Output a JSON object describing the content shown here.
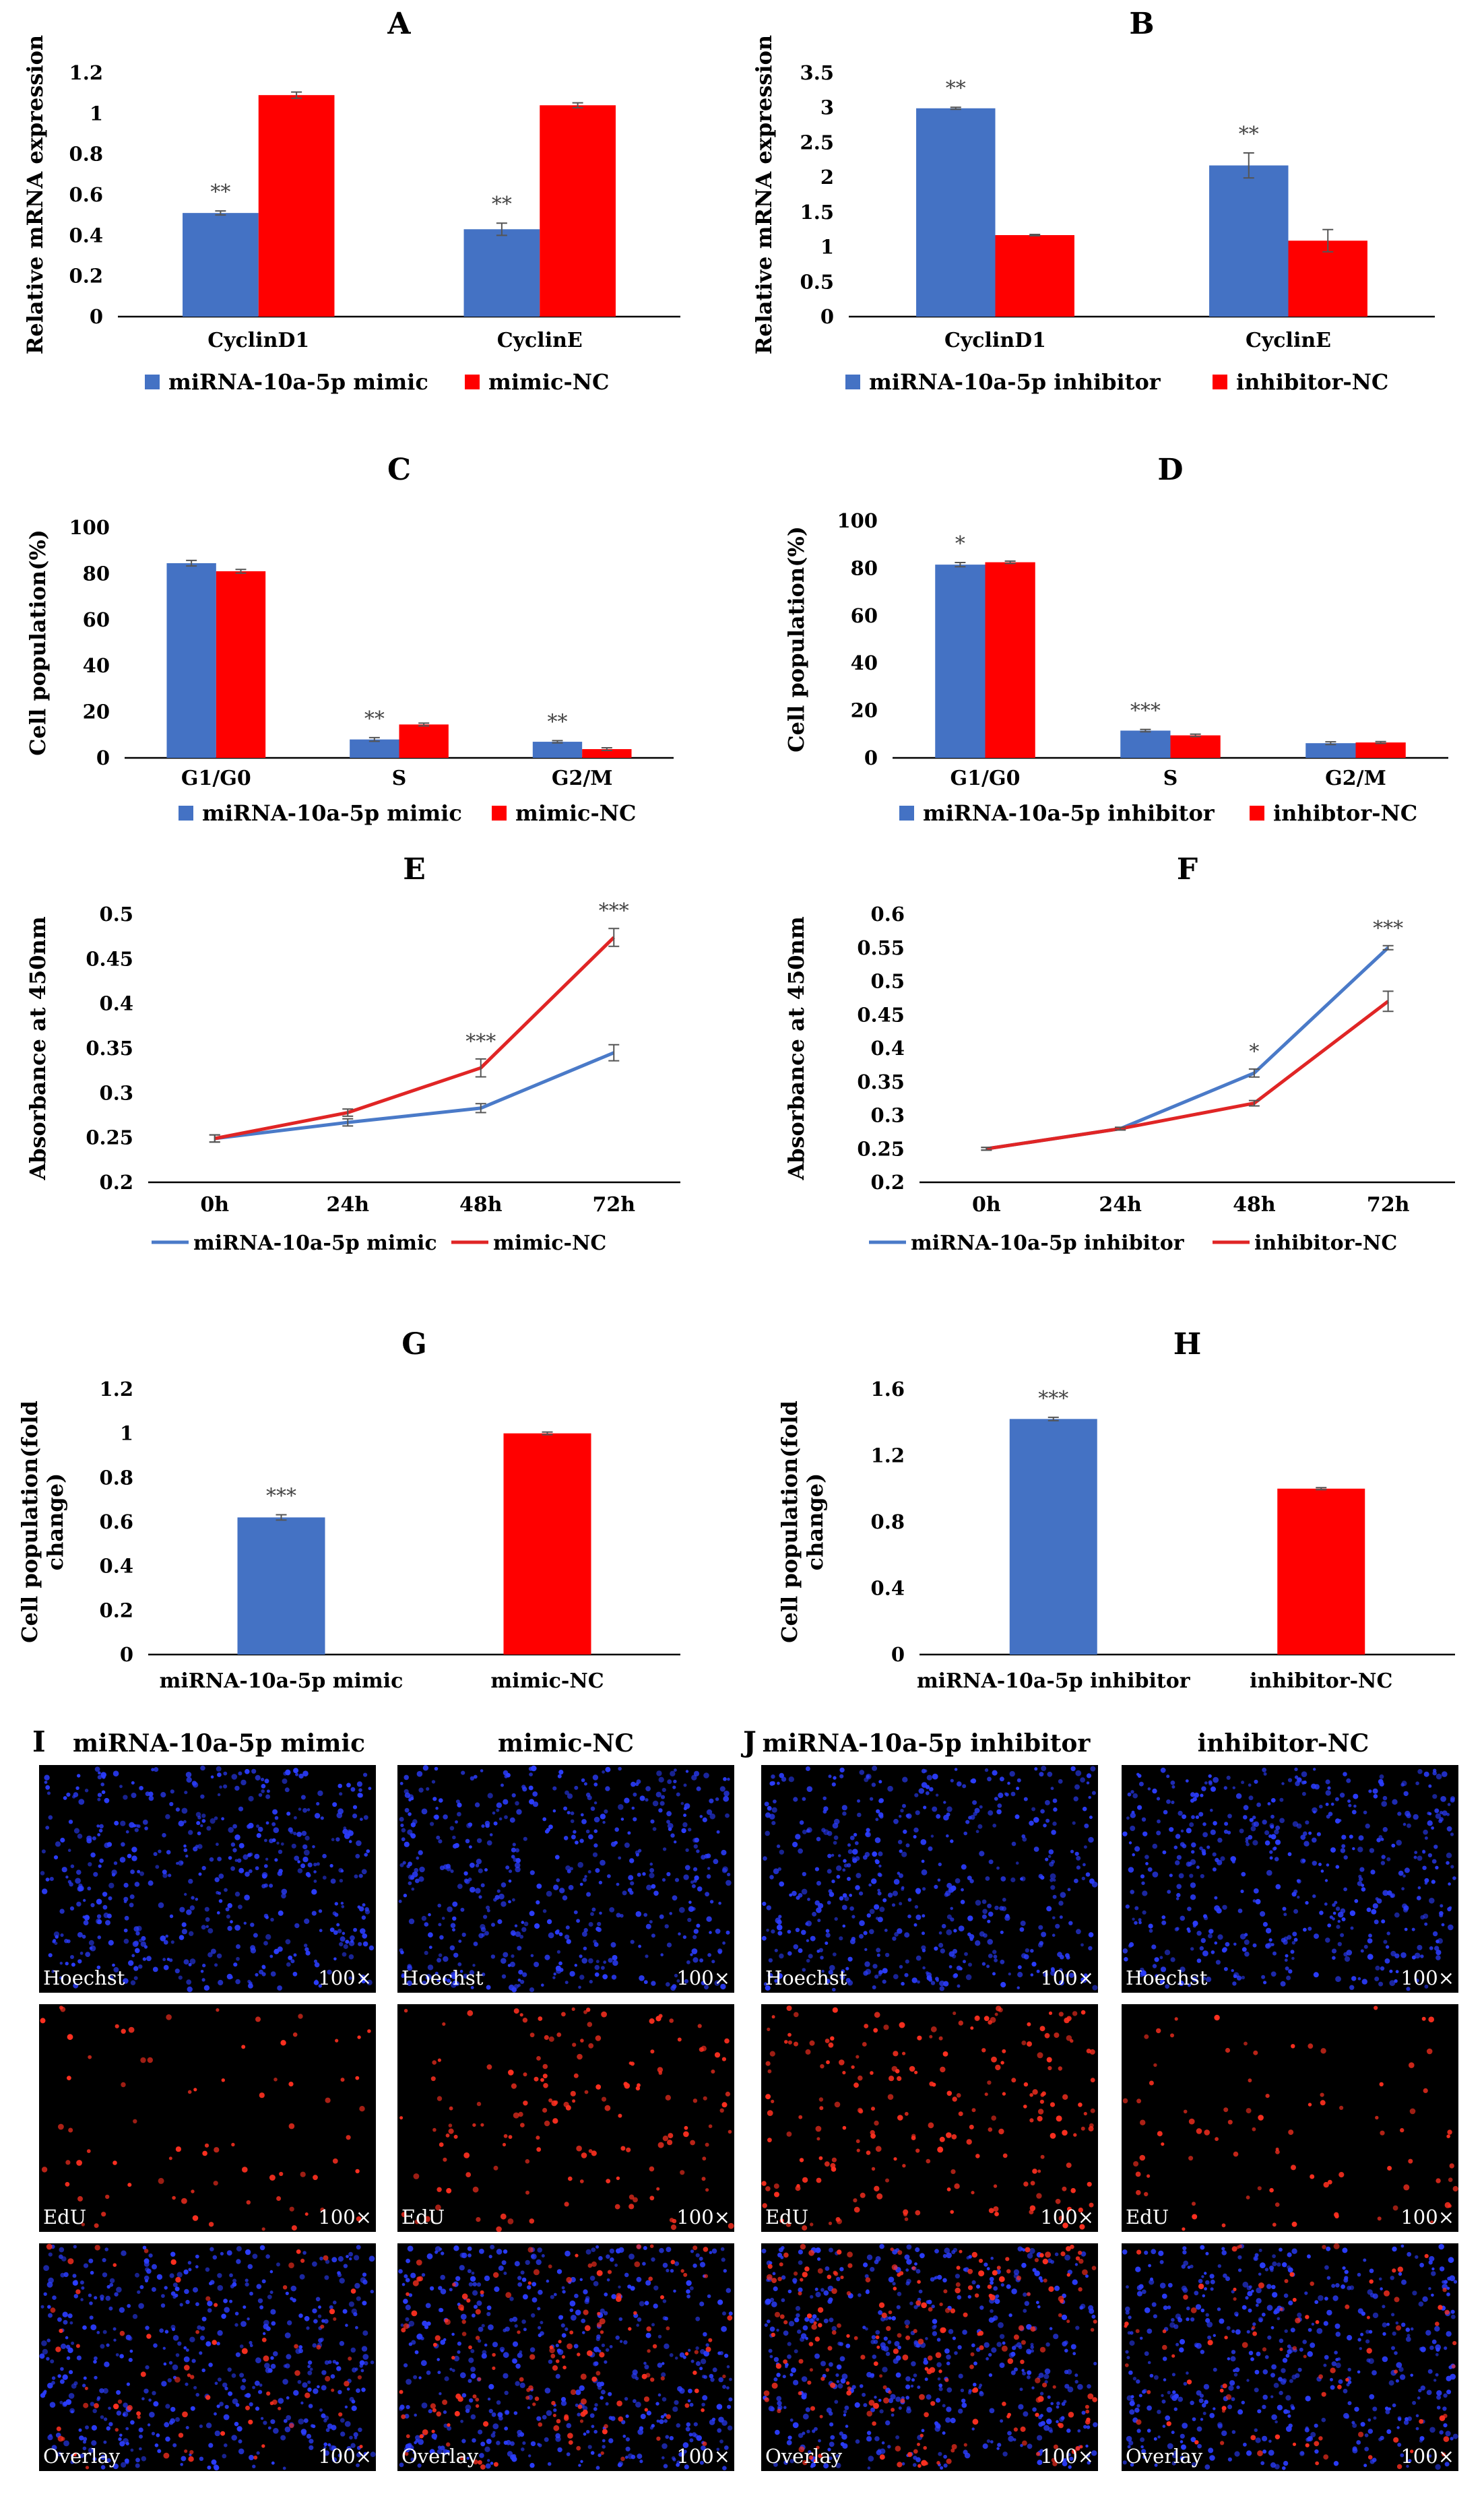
{
  "colors": {
    "blue": "#4472c4",
    "red": "#ff0000",
    "line_blue": "#4a7ac8",
    "line_red": "#e02525",
    "axis": "#000000",
    "cell_blue": "#2b3dff",
    "cell_red": "#ff3020"
  },
  "chart_data": [
    {
      "id": "A",
      "type": "bar",
      "title": "A",
      "ylabel": "Relative mRNA expression",
      "ylim": [
        0,
        1.2
      ],
      "yticks": [
        "0",
        "0.2",
        "0.4",
        "0.6",
        "0.8",
        "1",
        "1.2"
      ],
      "categories": [
        "CyclinD1",
        "CyclinE"
      ],
      "series": [
        {
          "name": "miRNA-10a-5p mimic",
          "color": "#4472c4",
          "values": [
            0.51,
            0.43
          ],
          "errors": [
            0.01,
            0.03
          ]
        },
        {
          "name": "mimic-NC",
          "color": "#ff0000",
          "values": [
            1.09,
            1.04
          ],
          "errors": [
            0.015,
            0.012
          ]
        }
      ],
      "annotations": [
        {
          "cat": 0,
          "series": 0,
          "text": "**"
        },
        {
          "cat": 1,
          "series": 0,
          "text": "**"
        }
      ]
    },
    {
      "id": "B",
      "type": "bar",
      "title": "B",
      "ylabel": "Relative mRNA expression",
      "ylim": [
        0,
        3.5
      ],
      "yticks": [
        "0",
        "0.5",
        "1",
        "1.5",
        "2",
        "2.5",
        "3",
        "3.5"
      ],
      "categories": [
        "CyclinD1",
        "CyclinE"
      ],
      "series": [
        {
          "name": "miRNA-10a-5p inhibitor",
          "color": "#4472c4",
          "values": [
            2.99,
            2.17
          ],
          "errors": [
            0.015,
            0.18
          ]
        },
        {
          "name": "inhibitor-NC",
          "color": "#ff0000",
          "values": [
            1.17,
            1.09
          ],
          "errors": [
            0.01,
            0.16
          ]
        }
      ],
      "annotations": [
        {
          "cat": 0,
          "series": 0,
          "text": "**"
        },
        {
          "cat": 1,
          "series": 0,
          "text": "**"
        }
      ]
    },
    {
      "id": "C",
      "type": "bar",
      "title": "C",
      "ylabel": "Cell population(%)",
      "ylim": [
        0,
        100
      ],
      "yticks": [
        "0",
        "20",
        "40",
        "60",
        "80",
        "100"
      ],
      "categories": [
        "G1/G0",
        "S",
        "G2/M"
      ],
      "series": [
        {
          "name": "miRNA-10a-5p mimic",
          "color": "#4472c4",
          "values": [
            84.5,
            8.0,
            7.0
          ],
          "errors": [
            1.2,
            0.8,
            0.5
          ]
        },
        {
          "name": "mimic-NC",
          "color": "#ff0000",
          "values": [
            81.0,
            14.5,
            3.8
          ],
          "errors": [
            0.8,
            0.6,
            0.6
          ]
        }
      ],
      "annotations": [
        {
          "cat": 1,
          "series": 0,
          "text": "**"
        },
        {
          "cat": 2,
          "series": 0,
          "text": "**"
        }
      ]
    },
    {
      "id": "D",
      "type": "bar",
      "title": "D",
      "ylabel": "Cell population(%)",
      "ylim": [
        0,
        100
      ],
      "yticks": [
        "0",
        "20",
        "40",
        "60",
        "80",
        "100"
      ],
      "categories": [
        "G1/G0",
        "S",
        "G2/M"
      ],
      "series": [
        {
          "name": "miRNA-10a-5p inhibitor",
          "color": "#4472c4",
          "values": [
            81.5,
            11.5,
            6.2
          ],
          "errors": [
            0.9,
            0.5,
            0.6
          ]
        },
        {
          "name": "inhibtor-NC",
          "color": "#ff0000",
          "values": [
            82.5,
            9.5,
            6.5
          ],
          "errors": [
            0.5,
            0.5,
            0.4
          ]
        }
      ],
      "annotations": [
        {
          "cat": 0,
          "series": 0,
          "text": "*"
        },
        {
          "cat": 1,
          "series": 0,
          "text": "***"
        }
      ]
    },
    {
      "id": "E",
      "type": "line",
      "title": "E",
      "ylabel": "Absorbance at 450nm",
      "ylim": [
        0.2,
        0.5
      ],
      "yticks": [
        "0.2",
        "0.25",
        "0.3",
        "0.35",
        "0.4",
        "0.45",
        "0.5"
      ],
      "categories": [
        "0h",
        "24h",
        "48h",
        "72h"
      ],
      "series": [
        {
          "name": "miRNA-10a-5p mimic",
          "color": "#4a7ac8",
          "values": [
            0.249,
            0.267,
            0.283,
            0.345
          ],
          "errors": [
            0.004,
            0.004,
            0.005,
            0.009
          ]
        },
        {
          "name": "mimic-NC",
          "color": "#e02525",
          "values": [
            0.249,
            0.278,
            0.328,
            0.474
          ],
          "errors": [
            0.004,
            0.004,
            0.01,
            0.01
          ]
        }
      ],
      "annotations": [
        {
          "cat": 2,
          "series": 1,
          "text": "***"
        },
        {
          "cat": 3,
          "series": 1,
          "text": "***"
        }
      ]
    },
    {
      "id": "F",
      "type": "line",
      "title": "F",
      "ylabel": "Absorbance at 450nm",
      "ylim": [
        0.2,
        0.6
      ],
      "yticks": [
        "0.2",
        "0.25",
        "0.3",
        "0.35",
        "0.4",
        "0.45",
        "0.5",
        "0.55",
        "0.6"
      ],
      "categories": [
        "0h",
        "24h",
        "48h",
        "72h"
      ],
      "series": [
        {
          "name": "miRNA-10a-5p inhibitor",
          "color": "#4a7ac8",
          "values": [
            0.25,
            0.28,
            0.363,
            0.55
          ],
          "errors": [
            0.002,
            0.002,
            0.006,
            0.003
          ]
        },
        {
          "name": "inhibitor-NC",
          "color": "#e02525",
          "values": [
            0.25,
            0.28,
            0.318,
            0.47
          ],
          "errors": [
            0.002,
            0.002,
            0.004,
            0.015
          ]
        }
      ],
      "annotations": [
        {
          "cat": 2,
          "series": 0,
          "text": "*"
        },
        {
          "cat": 3,
          "series": 0,
          "text": "***"
        }
      ]
    },
    {
      "id": "G",
      "type": "bar",
      "title": "G",
      "ylabel": "Cell population(fold change)",
      "ylabel_lines": [
        "Cell population(fold",
        "change)"
      ],
      "ylim": [
        0,
        1.2
      ],
      "yticks": [
        "0",
        "0.2",
        "0.4",
        "0.6",
        "0.8",
        "1",
        "1.2"
      ],
      "categories": [
        "miRNA-10a-5p mimic",
        "mimic-NC"
      ],
      "values": [
        0.62,
        1.0
      ],
      "errors": [
        0.012,
        0.006
      ],
      "colors": [
        "#4472c4",
        "#ff0000"
      ],
      "annotations": [
        {
          "cat": 0,
          "text": "***"
        }
      ]
    },
    {
      "id": "H",
      "type": "bar",
      "title": "H",
      "ylabel": "Cell population(fold change)",
      "ylabel_lines": [
        "Cell population(fold",
        "change)"
      ],
      "ylim": [
        0,
        1.6
      ],
      "yticks": [
        "0",
        "0.4",
        "0.8",
        "1.2",
        "1.6"
      ],
      "categories": [
        "miRNA-10a-5p inhibitor",
        "inhibitor-NC"
      ],
      "values": [
        1.42,
        1.0
      ],
      "errors": [
        0.01,
        0.006
      ],
      "colors": [
        "#4472c4",
        "#ff0000"
      ],
      "annotations": [
        {
          "cat": 0,
          "text": "***"
        }
      ]
    }
  ],
  "micrographs": {
    "panel_I_label": "I",
    "panel_J_label": "J",
    "columns": [
      {
        "title": "miRNA-10a-5p mimic",
        "edu_density": 0.35
      },
      {
        "title": "mimic-NC",
        "edu_density": 0.7
      },
      {
        "title": "miRNA-10a-5p inhibitor",
        "edu_density": 1.0
      },
      {
        "title": "inhibitor-NC",
        "edu_density": 0.4
      }
    ],
    "rows": [
      "Hoechst",
      "EdU",
      "Overlay"
    ],
    "magnification": "100×"
  }
}
